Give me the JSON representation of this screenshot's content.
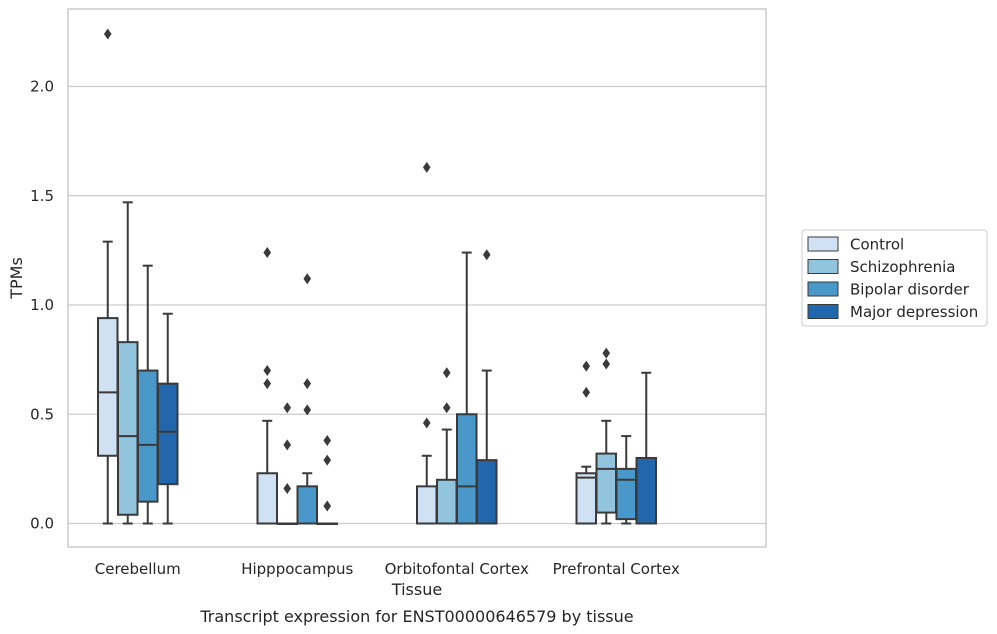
{
  "chart_data": {
    "type": "boxplot",
    "caption": "Transcript expression for ENST00000646579 by tissue",
    "xlabel": "Tissue",
    "ylabel": "TPMs",
    "ylim": [
      -0.11,
      2.36
    ],
    "yticks": [
      0.0,
      0.5,
      1.0,
      1.5,
      2.0
    ],
    "ytick_labels": [
      "0.0",
      "0.5",
      "1.0",
      "1.5",
      "2.0"
    ],
    "grid": "horizontal",
    "legend_position": "right",
    "categories": [
      "Cerebellum",
      "Hipppocampus",
      "Orbitofontal Cortex",
      "Prefrontal Cortex"
    ],
    "series": [
      {
        "name": "Control",
        "color": "#cfe1f2",
        "boxes": [
          {
            "whislo": 0.0,
            "q1": 0.31,
            "med": 0.6,
            "q3": 0.94,
            "whishi": 1.29,
            "fliers": [
              2.24
            ]
          },
          {
            "whislo": 0.0,
            "q1": 0.0,
            "med": 0.0,
            "q3": 0.23,
            "whishi": 0.47,
            "fliers": [
              0.64,
              0.7,
              1.24
            ]
          },
          {
            "whislo": 0.0,
            "q1": 0.0,
            "med": 0.0,
            "q3": 0.17,
            "whishi": 0.31,
            "fliers": [
              0.46,
              1.63
            ]
          },
          {
            "whislo": 0.0,
            "q1": 0.0,
            "med": 0.21,
            "q3": 0.23,
            "whishi": 0.26,
            "fliers": [
              0.6,
              0.72
            ]
          }
        ]
      },
      {
        "name": "Schizophrenia",
        "color": "#93c4de",
        "boxes": [
          {
            "whislo": 0.0,
            "q1": 0.04,
            "med": 0.4,
            "q3": 0.83,
            "whishi": 1.47,
            "fliers": []
          },
          {
            "whislo": 0.0,
            "q1": 0.0,
            "med": 0.0,
            "q3": 0.0,
            "whishi": 0.0,
            "fliers": [
              0.16,
              0.36,
              0.53
            ]
          },
          {
            "whislo": 0.0,
            "q1": 0.0,
            "med": 0.0,
            "q3": 0.2,
            "whishi": 0.43,
            "fliers": [
              0.53,
              0.69
            ]
          },
          {
            "whislo": 0.0,
            "q1": 0.05,
            "med": 0.25,
            "q3": 0.32,
            "whishi": 0.47,
            "fliers": [
              0.73,
              0.78
            ]
          }
        ]
      },
      {
        "name": "Bipolar disorder",
        "color": "#4a98c9",
        "boxes": [
          {
            "whislo": 0.0,
            "q1": 0.1,
            "med": 0.36,
            "q3": 0.7,
            "whishi": 1.18,
            "fliers": []
          },
          {
            "whislo": 0.0,
            "q1": 0.0,
            "med": 0.0,
            "q3": 0.17,
            "whishi": 0.23,
            "fliers": [
              0.52,
              0.64,
              1.12
            ]
          },
          {
            "whislo": 0.0,
            "q1": 0.0,
            "med": 0.17,
            "q3": 0.5,
            "whishi": 1.24,
            "fliers": []
          },
          {
            "whislo": 0.0,
            "q1": 0.02,
            "med": 0.2,
            "q3": 0.25,
            "whishi": 0.4,
            "fliers": []
          }
        ]
      },
      {
        "name": "Major depression",
        "color": "#2266ac",
        "boxes": [
          {
            "whislo": 0.0,
            "q1": 0.18,
            "med": 0.42,
            "q3": 0.64,
            "whishi": 0.96,
            "fliers": []
          },
          {
            "whislo": 0.0,
            "q1": 0.0,
            "med": 0.0,
            "q3": 0.0,
            "whishi": 0.0,
            "fliers": [
              0.08,
              0.29,
              0.38
            ]
          },
          {
            "whislo": 0.0,
            "q1": 0.0,
            "med": 0.0,
            "q3": 0.29,
            "whishi": 0.7,
            "fliers": [
              1.23
            ]
          },
          {
            "whislo": 0.0,
            "q1": 0.0,
            "med": 0.0,
            "q3": 0.3,
            "whishi": 0.69,
            "fliers": []
          }
        ]
      }
    ]
  }
}
